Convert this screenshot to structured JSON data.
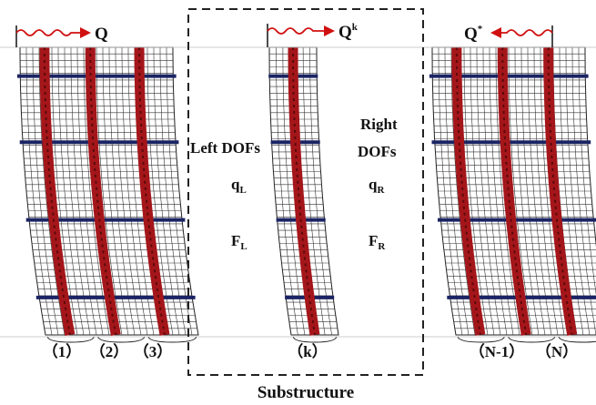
{
  "forces": {
    "left": {
      "symbol": "Q"
    },
    "middle": {
      "symbol": "Q",
      "sup": "k"
    },
    "right": {
      "symbol": "Q",
      "sup": "*"
    }
  },
  "dofs": {
    "left_title": "Left DOFs",
    "right_title": [
      "Right",
      "DOFs"
    ],
    "left_displacement": {
      "symbol": "q",
      "sub": "L"
    },
    "right_displacement": {
      "symbol": "q",
      "sub": "R"
    },
    "left_force": {
      "symbol": "F",
      "sub": "L"
    },
    "right_force": {
      "symbol": "F",
      "sub": "R"
    }
  },
  "segments": [
    "（1）",
    "（2）",
    "（3）",
    "（k）",
    "（N-1）",
    "（N）"
  ],
  "caption": "Substructure"
}
